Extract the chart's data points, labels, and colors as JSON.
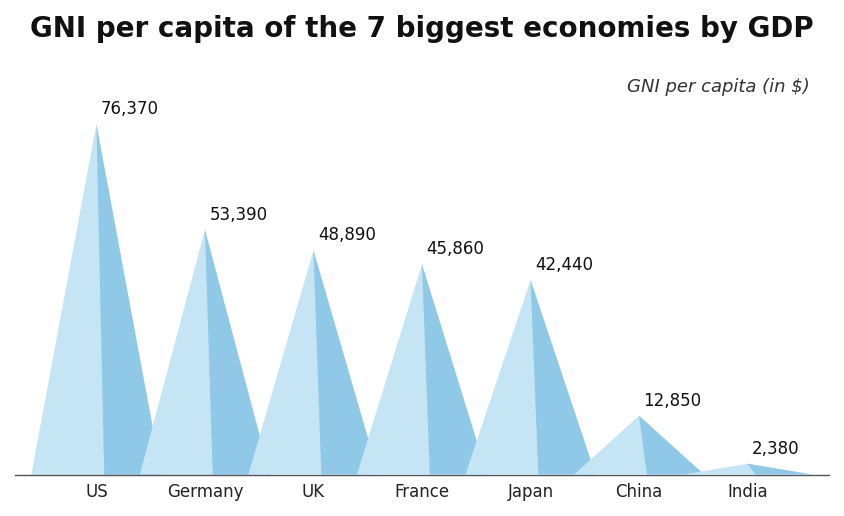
{
  "title": "GNI per capita of the 7 biggest economies by GDP",
  "subtitle": "GNI per capita (in $)",
  "categories": [
    "US",
    "Germany",
    "UK",
    "France",
    "Japan",
    "China",
    "India"
  ],
  "values": [
    76370,
    53390,
    48890,
    45860,
    42440,
    12850,
    2380
  ],
  "labels": [
    "76,370",
    "53,390",
    "48,890",
    "45,860",
    "42,440",
    "12,850",
    "2,380"
  ],
  "triangle_color_light": "#c5e5f5",
  "triangle_color_dark": "#90c8e8",
  "background_color": "#ffffff",
  "title_fontsize": 20,
  "label_fontsize": 12,
  "category_fontsize": 12,
  "subtitle_fontsize": 13
}
